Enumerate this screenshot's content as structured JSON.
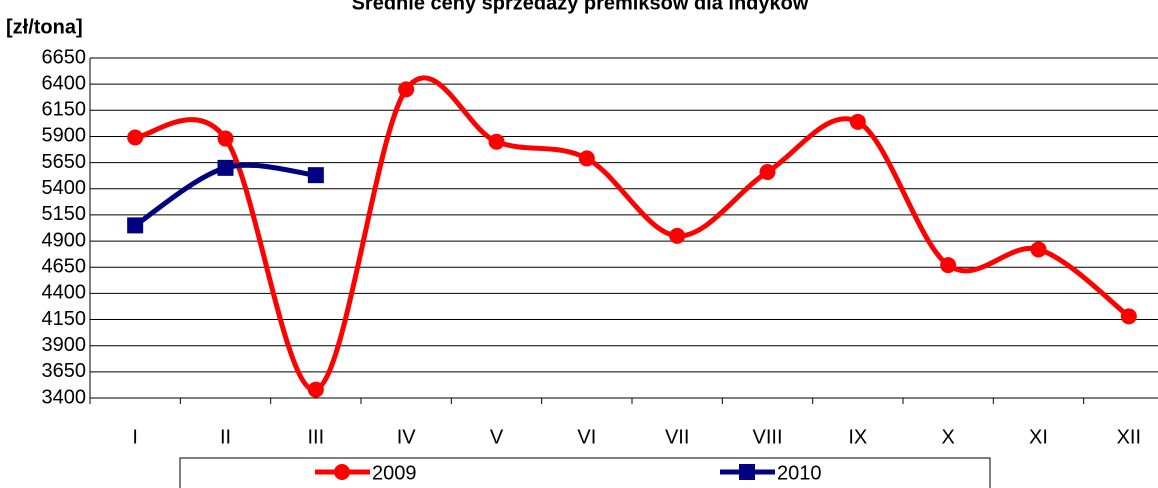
{
  "chart_data": {
    "type": "line",
    "title": "Średnie ceny sprzedaży premiksów dla indyków",
    "y_label": "[zł/tona]",
    "categories": [
      "I",
      "II",
      "III",
      "IV",
      "V",
      "VI",
      "VII",
      "VIII",
      "IX",
      "X",
      "XI",
      "XII"
    ],
    "series": [
      {
        "name": "2009",
        "color": "#ff0000",
        "marker": "circle",
        "values": [
          5890,
          5880,
          3480,
          6350,
          5850,
          5690,
          4950,
          5560,
          6040,
          4670,
          4820,
          4180
        ]
      },
      {
        "name": "2010",
        "color": "#000080",
        "marker": "square",
        "values": [
          5050,
          5600,
          5530,
          null,
          null,
          null,
          null,
          null,
          null,
          null,
          null,
          null
        ]
      }
    ],
    "ylim": [
      3400,
      6650
    ],
    "yticks": [
      3400,
      3650,
      3900,
      4150,
      4400,
      4650,
      4900,
      5150,
      5400,
      5650,
      5900,
      6150,
      6400,
      6650
    ],
    "grid": true,
    "smooth": true,
    "legend": "bottom"
  }
}
